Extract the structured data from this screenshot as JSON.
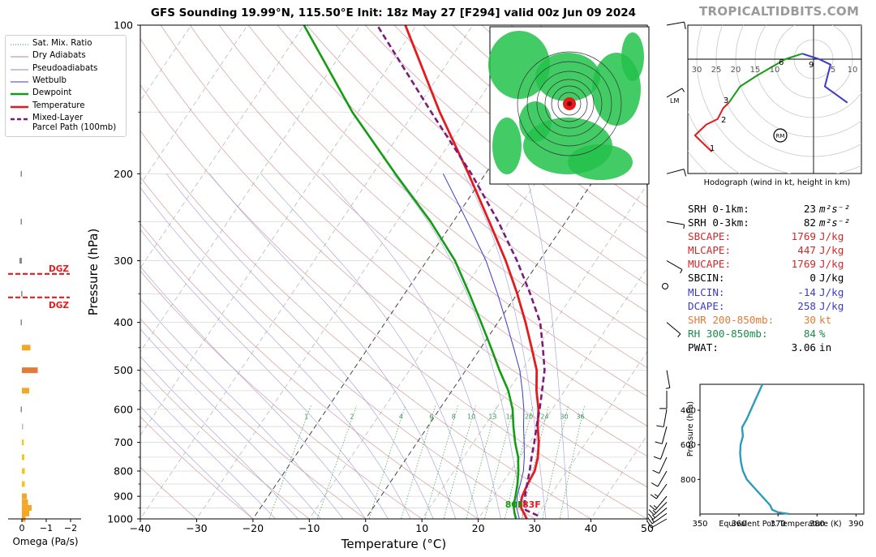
{
  "title": "GFS Sounding 19.99°N, 115.50°E Init: 18z May 27 [F294] valid 00z Jun 09 2024",
  "brand": "TROPICALTIDBITS.COM",
  "legend": [
    {
      "label": "Sat. Mix. Ratio",
      "color": "#2e8b57",
      "style": "dotted"
    },
    {
      "label": "Dry Adiabats",
      "color": "#c08080",
      "style": "solid"
    },
    {
      "label": "Pseudoadiabats",
      "color": "#8888cc",
      "style": "solid"
    },
    {
      "label": "Wetbulb",
      "color": "#3a3acf",
      "style": "solid"
    },
    {
      "label": "Dewpoint",
      "color": "#139d13",
      "style": "thick"
    },
    {
      "label": "Temperature",
      "color": "#e41a1c",
      "style": "thick"
    },
    {
      "label": "Mixed-Layer",
      "label2": "Parcel Path (100mb)",
      "color": "#7b1b7b",
      "style": "dashed"
    }
  ],
  "chart_data": [
    {
      "type": "line",
      "xlabel": "Temperature (°C)",
      "ylabel": "Pressure (hPa)",
      "xlim": [
        -40,
        50
      ],
      "ylim": [
        1000,
        100
      ],
      "y_scale": "log",
      "x_ticks": [
        -40,
        -30,
        -20,
        -10,
        0,
        10,
        20,
        30,
        40,
        50
      ],
      "y_ticks": [
        100,
        200,
        300,
        400,
        500,
        600,
        700,
        800,
        900,
        1000
      ],
      "mixing_ratio_labels": [
        "1",
        "2",
        "4",
        "6",
        "8",
        "10",
        "13",
        "16",
        "20",
        "24",
        "30",
        "36"
      ],
      "surface_labels": {
        "dewpoint": "80F",
        "temperature": "83F"
      },
      "dgz_label": "DGZ",
      "series": [
        {
          "name": "Temperature",
          "color": "#e41a1c",
          "points": [
            [
              1000,
              28.6
            ],
            [
              975,
              27.5
            ],
            [
              950,
              26.3
            ],
            [
              925,
              25.6
            ],
            [
              900,
              25.1
            ],
            [
              850,
              24.6
            ],
            [
              800,
              24.3
            ],
            [
              750,
              23.2
            ],
            [
              700,
              21.6
            ],
            [
              650,
              19.5
            ],
            [
              600,
              17.6
            ],
            [
              550,
              15.0
            ],
            [
              500,
              12.6
            ],
            [
              450,
              9.0
            ],
            [
              400,
              4.9
            ],
            [
              350,
              0.0
            ],
            [
              300,
              -6.0
            ],
            [
              250,
              -13.6
            ],
            [
              200,
              -23.0
            ],
            [
              150,
              -35.5
            ],
            [
              100,
              -52.0
            ]
          ]
        },
        {
          "name": "Dewpoint",
          "color": "#139d13",
          "points": [
            [
              1000,
              26.7
            ],
            [
              975,
              25.8
            ],
            [
              950,
              25.0
            ],
            [
              925,
              24.4
            ],
            [
              900,
              23.9
            ],
            [
              850,
              22.8
            ],
            [
              800,
              21.4
            ],
            [
              750,
              19.7
            ],
            [
              700,
              17.4
            ],
            [
              650,
              15.2
            ],
            [
              600,
              13.0
            ],
            [
              550,
              10.0
            ],
            [
              500,
              6.0
            ],
            [
              450,
              1.8
            ],
            [
              400,
              -3.0
            ],
            [
              350,
              -8.5
            ],
            [
              300,
              -15.0
            ],
            [
              250,
              -24.0
            ],
            [
              200,
              -36.0
            ],
            [
              150,
              -51.0
            ],
            [
              100,
              -70.0
            ]
          ]
        },
        {
          "name": "Wetbulb",
          "color": "#3a3acf",
          "points": [
            [
              1000,
              27.3
            ],
            [
              950,
              25.5
            ],
            [
              900,
              24.2
            ],
            [
              850,
              23.3
            ],
            [
              800,
              22.3
            ],
            [
              750,
              20.8
            ],
            [
              700,
              19.0
            ],
            [
              650,
              17.0
            ],
            [
              600,
              15.0
            ],
            [
              550,
              12.5
            ],
            [
              500,
              9.6
            ],
            [
              450,
              5.8
            ],
            [
              400,
              1.5
            ],
            [
              350,
              -3.5
            ],
            [
              300,
              -9.5
            ],
            [
              250,
              -17.5
            ],
            [
              200,
              -27.5
            ]
          ]
        },
        {
          "name": "Parcel Path",
          "color": "#7b1b7b",
          "points": [
            [
              985,
              30.2
            ],
            [
              960,
              27.4
            ],
            [
              925,
              26.2
            ],
            [
              900,
              25.6
            ],
            [
              850,
              24.5
            ],
            [
              800,
              23.4
            ],
            [
              750,
              22.1
            ],
            [
              700,
              20.8
            ],
            [
              650,
              19.3
            ],
            [
              600,
              17.8
            ],
            [
              550,
              16.0
            ],
            [
              500,
              14.0
            ],
            [
              450,
              11.0
            ],
            [
              400,
              7.5
            ],
            [
              350,
              2.3
            ],
            [
              300,
              -4.0
            ],
            [
              250,
              -12.0
            ],
            [
              200,
              -22.5
            ],
            [
              150,
              -37.0
            ],
            [
              100,
              -57.0
            ]
          ]
        }
      ]
    },
    {
      "type": "line",
      "title": "",
      "xlabel": "Equivalent Pot. Temperature (K)",
      "ylabel": "Pressure (hPa)",
      "xlim": [
        350,
        392
      ],
      "ylim": [
        1000,
        250
      ],
      "x_ticks": [
        350,
        360,
        370,
        380,
        390
      ],
      "y_ticks": [
        400,
        600,
        800
      ],
      "series": [
        {
          "name": "Theta-E",
          "color": "#2e9bb8",
          "points": [
            [
              1000,
              373.0
            ],
            [
              990,
              370.0
            ],
            [
              975,
              368.5
            ],
            [
              950,
              368.0
            ],
            [
              925,
              367.0
            ],
            [
              900,
              366.0
            ],
            [
              850,
              364.0
            ],
            [
              800,
              362.0
            ],
            [
              750,
              361.0
            ],
            [
              700,
              360.5
            ],
            [
              650,
              360.3
            ],
            [
              600,
              360.4
            ],
            [
              550,
              361.0
            ],
            [
              500,
              360.8
            ],
            [
              450,
              362.0
            ],
            [
              400,
              363.0
            ],
            [
              350,
              364.0
            ],
            [
              300,
              365.0
            ],
            [
              250,
              366.0
            ]
          ]
        }
      ]
    },
    {
      "type": "line",
      "xlabel": "Omega (Pa/s)",
      "x_ticks": [
        "0",
        "−1",
        "−2"
      ],
      "xlim": [
        0.2,
        -2.4
      ],
      "bars": [
        {
          "p": 1000,
          "omega": -0.15,
          "color": "#f5a623"
        },
        {
          "p": 975,
          "omega": -0.3,
          "color": "#f5a623"
        },
        {
          "p": 950,
          "omega": -0.4,
          "color": "#f5a623"
        },
        {
          "p": 925,
          "omega": -0.25,
          "color": "#f5a623"
        },
        {
          "p": 900,
          "omega": -0.2,
          "color": "#f5a623"
        },
        {
          "p": 850,
          "omega": -0.12,
          "color": "#f5c518"
        },
        {
          "p": 800,
          "omega": -0.12,
          "color": "#f5c518"
        },
        {
          "p": 750,
          "omega": -0.1,
          "color": "#f5c518"
        },
        {
          "p": 700,
          "omega": -0.08,
          "color": "#f5c518"
        },
        {
          "p": 650,
          "omega": -0.02,
          "color": "#bbbbbb"
        },
        {
          "p": 600,
          "omega": 0.05,
          "color": "#888888"
        },
        {
          "p": 550,
          "omega": -0.3,
          "color": "#f5a623"
        },
        {
          "p": 500,
          "omega": -0.65,
          "color": "#e07b39"
        },
        {
          "p": 450,
          "omega": -0.35,
          "color": "#f5a623"
        },
        {
          "p": 400,
          "omega": 0.05,
          "color": "#888888"
        },
        {
          "p": 350,
          "omega": 0.03,
          "color": "#888888"
        },
        {
          "p": 300,
          "omega": 0.1,
          "color": "#888888"
        },
        {
          "p": 250,
          "omega": 0.05,
          "color": "#888888"
        },
        {
          "p": 200,
          "omega": 0.05,
          "color": "#888888"
        },
        {
          "p": 130,
          "omega": -0.05,
          "color": "#f5c518"
        }
      ],
      "dgz_levels": [
        319,
        356
      ]
    },
    {
      "type": "line",
      "xlabel": "Hodograph (wind in kt, height in km)",
      "ring_labels": [
        "30",
        "25",
        "20",
        "15",
        "10",
        "5",
        "10"
      ],
      "height_labels": [
        "1",
        "2",
        "3",
        "6",
        "9"
      ],
      "storm_motion_label": "RM",
      "series": [
        {
          "name": "0-3 km",
          "color": "#e41a1c",
          "points": [
            [
              18,
              10
            ],
            [
              19,
              9
            ],
            [
              21,
              7
            ],
            [
              19,
              5
            ],
            [
              17,
              4
            ],
            [
              16,
              2
            ],
            [
              15,
              1
            ]
          ]
        },
        {
          "name": "3-6 km",
          "color": "#139d13",
          "points": [
            [
              15,
              1
            ],
            [
              13,
              -2
            ],
            [
              10,
              -4
            ],
            [
              5,
              -7
            ],
            [
              2,
              -8
            ]
          ]
        },
        {
          "name": "6-9 km",
          "color": "#3a3acf",
          "points": [
            [
              2,
              -8
            ],
            [
              -1,
              -7
            ],
            [
              -3,
              -6
            ],
            [
              -2,
              -2
            ],
            [
              -6,
              1
            ]
          ]
        }
      ]
    },
    {
      "type": "line",
      "wind_barbs": [
        {
          "p": 1000,
          "dir": 240,
          "spd": 12
        },
        {
          "p": 975,
          "dir": 235,
          "spd": 15
        },
        {
          "p": 950,
          "dir": 230,
          "spd": 18
        },
        {
          "p": 925,
          "dir": 225,
          "spd": 18
        },
        {
          "p": 900,
          "dir": 220,
          "spd": 15
        },
        {
          "p": 850,
          "dir": 215,
          "spd": 15
        },
        {
          "p": 800,
          "dir": 210,
          "spd": 14
        },
        {
          "p": 750,
          "dir": 205,
          "spd": 14
        },
        {
          "p": 700,
          "dir": 200,
          "spd": 14
        },
        {
          "p": 650,
          "dir": 195,
          "spd": 13
        },
        {
          "p": 600,
          "dir": 190,
          "spd": 12
        },
        {
          "p": 550,
          "dir": 180,
          "spd": 10
        },
        {
          "p": 500,
          "dir": 170,
          "spd": 8
        },
        {
          "p": 400,
          "dir": 130,
          "spd": 6
        },
        {
          "p": 300,
          "dir": 120,
          "spd": 6
        },
        {
          "p": 250,
          "dir": 100,
          "spd": 8
        },
        {
          "p": 200,
          "dir": 75,
          "spd": 10
        },
        {
          "p": 140,
          "dir": 60,
          "spd": 8
        },
        {
          "p": 100,
          "dir": 80,
          "spd": 10
        }
      ],
      "lm_label": "LM"
    }
  ],
  "params": [
    {
      "label": "SRH 0-1km:",
      "value": "23",
      "unit": "m²s⁻²",
      "color": "#000000"
    },
    {
      "label": "SRH 0-3km:",
      "value": "82",
      "unit": "m²s⁻²",
      "color": "#000000"
    },
    {
      "label": "SBCAPE:",
      "value": "1769",
      "unit": "J/kg",
      "color": "#d62728"
    },
    {
      "label": "MLCAPE:",
      "value": "447",
      "unit": "J/kg",
      "color": "#d62728"
    },
    {
      "label": "MUCAPE:",
      "value": "1769",
      "unit": "J/kg",
      "color": "#d62728"
    },
    {
      "label": "SBCIN:",
      "value": "0",
      "unit": "J/kg",
      "color": "#000000"
    },
    {
      "label": "MLCIN:",
      "value": "-14",
      "unit": "J/kg",
      "color": "#3a3acf"
    },
    {
      "label": "DCAPE:",
      "value": "258",
      "unit": "J/kg",
      "color": "#3a3acf"
    },
    {
      "label": "SHR 200-850mb:",
      "value": "30",
      "unit": "kt",
      "color": "#e07b39"
    },
    {
      "label": "RH 300-850mb:",
      "value": "84",
      "unit": "%",
      "color": "#1a8a4a"
    },
    {
      "label": "PWAT:",
      "value": "3.06",
      "unit": "in",
      "color": "#000000"
    }
  ],
  "inset_map": {
    "description": "GFS inset map",
    "center_color": "#e41a1c"
  }
}
